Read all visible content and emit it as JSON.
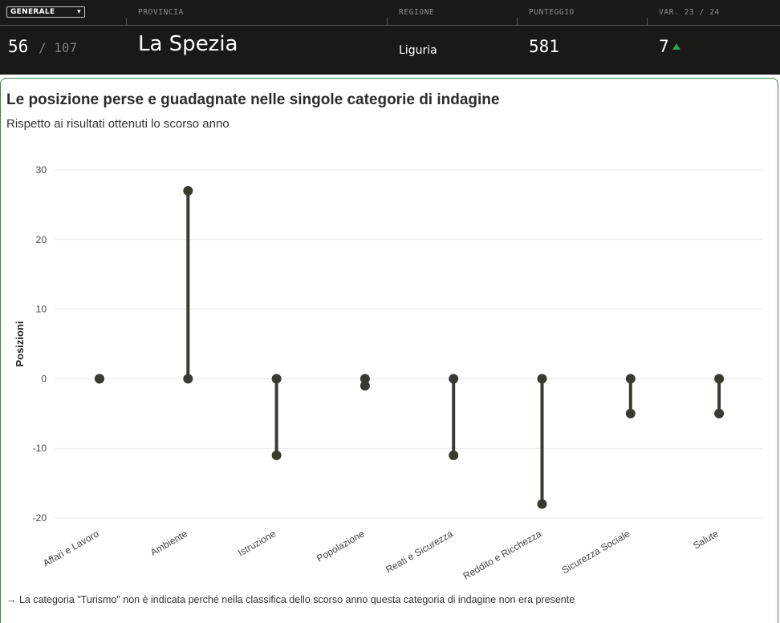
{
  "header": {
    "selector_value": "GENERALE",
    "labels": {
      "provincia": "PROVINCIA",
      "regione": "REGIONE",
      "punteggio": "PUNTEGGIO",
      "variazione": "VAR. 23 / 24"
    },
    "rank": "56",
    "rank_total": "/ 107",
    "province": "La Spezia",
    "region": "Liguria",
    "score": "581",
    "variation": "7",
    "variation_color": "#2fa04a"
  },
  "title": "Le posizione perse e guadagnate nelle singole categorie di indagine",
  "subtitle": "Rispetto ai risultati ottenuti lo scorso anno",
  "note": "→ La categoria \"Turismo\" non è indicata perché nella classifica dello scorso anno questa categoria di indagine non era presente",
  "chart_data": {
    "type": "dumbbell",
    "ylabel": "Posizioni",
    "ylim": [
      -20,
      30
    ],
    "yticks": [
      30,
      20,
      10,
      0,
      -10,
      -20
    ],
    "grid": true,
    "color": "#3a3a33",
    "categories": [
      "Affari e Lavoro",
      "Ambiente",
      "Istruzione",
      "Popolazione",
      "Reati e Sicurezza",
      "Reddito e Ricchezza",
      "Sicurezza Sociale",
      "Salute"
    ],
    "start": [
      0,
      0,
      0,
      0,
      0,
      0,
      0,
      0
    ],
    "end": [
      0,
      27,
      -11,
      -1,
      -11,
      -18,
      -5,
      -5
    ]
  }
}
